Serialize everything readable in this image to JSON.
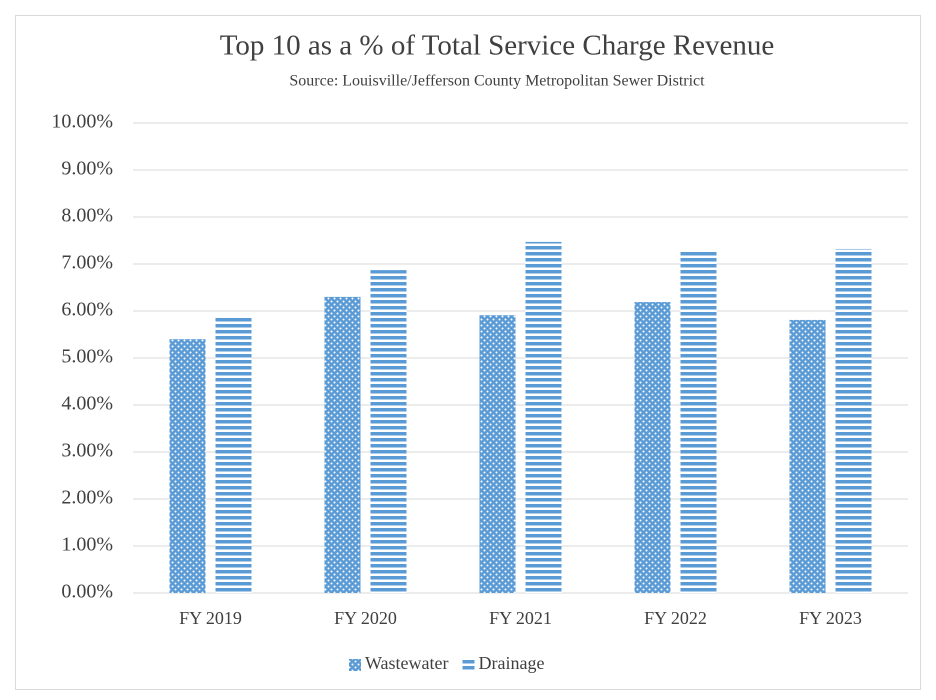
{
  "chart_data": {
    "type": "bar",
    "title": "Top 10 as a % of Total Service Charge Revenue",
    "subtitle": "Source: Louisville/Jefferson  County Metropolitan  Sewer District",
    "categories": [
      "FY 2019",
      "FY 2020",
      "FY 2021",
      "FY 2022",
      "FY 2023"
    ],
    "series": [
      {
        "name": "Wastewater",
        "color": "#5b9bd5",
        "pattern": "dots",
        "values": [
          5.4,
          6.3,
          5.91,
          6.19,
          5.81
        ]
      },
      {
        "name": "Drainage",
        "color": "#5b9bd5",
        "pattern": "stripes",
        "values": [
          5.87,
          6.87,
          7.47,
          7.28,
          7.32
        ]
      }
    ],
    "ylim": [
      0,
      10
    ],
    "yticks": [
      {
        "value": 0,
        "label": "0.00%"
      },
      {
        "value": 1,
        "label": "1.00%"
      },
      {
        "value": 2,
        "label": "2.00%"
      },
      {
        "value": 3,
        "label": "3.00%"
      },
      {
        "value": 4,
        "label": "4.00%"
      },
      {
        "value": 5,
        "label": "5.00%"
      },
      {
        "value": 6,
        "label": "6.00%"
      },
      {
        "value": 7,
        "label": "7.00%"
      },
      {
        "value": 8,
        "label": "8.00%"
      },
      {
        "value": 9,
        "label": "9.00%"
      },
      {
        "value": 10,
        "label": "10.00%"
      }
    ],
    "grid": true,
    "legend": "bottom"
  }
}
